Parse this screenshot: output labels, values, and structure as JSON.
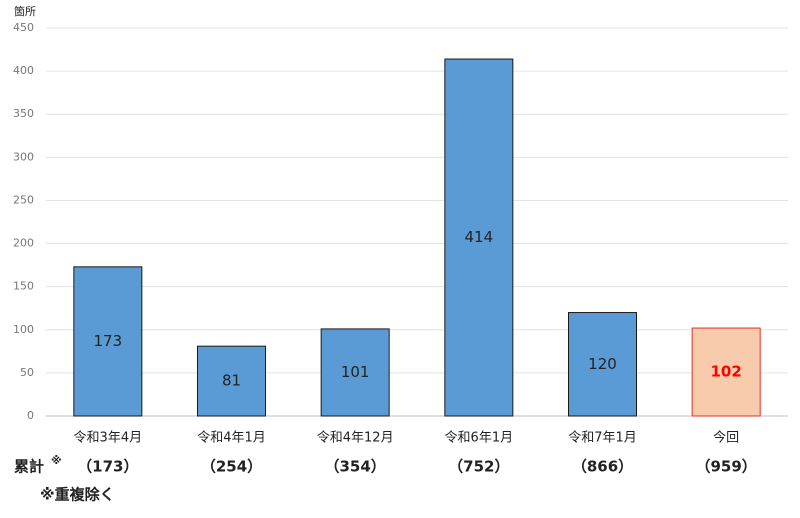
{
  "chart_data": {
    "type": "bar",
    "y_axis_label": "箇所",
    "categories": [
      "令和3年4月",
      "令和4年1月",
      "令和4年12月",
      "令和6年1月",
      "令和7年1月",
      "今回"
    ],
    "values": [
      173,
      81,
      101,
      414,
      120,
      102
    ],
    "bar_colors": [
      "#5b9bd5",
      "#5b9bd5",
      "#5b9bd5",
      "#5b9bd5",
      "#5b9bd5",
      "#f8cbad"
    ],
    "bar_edge_colors": [
      "#1a1a1a",
      "#1a1a1a",
      "#1a1a1a",
      "#1a1a1a",
      "#1a1a1a",
      "#e0302a"
    ],
    "label_colors": [
      "#1a1a1a",
      "#1a1a1a",
      "#1a1a1a",
      "#1a1a1a",
      "#1a1a1a",
      "#ff0000"
    ],
    "ylim": [
      0,
      450
    ],
    "yticks": [
      0,
      50,
      100,
      150,
      200,
      250,
      300,
      350,
      400,
      450
    ],
    "grid": true,
    "cumulative_label": "累計",
    "cumulative_mark": "※",
    "cumulative": [
      "（173）",
      "（254）",
      "（354）",
      "（752）",
      "（866）",
      "（959）"
    ],
    "note": "※重複除く"
  }
}
